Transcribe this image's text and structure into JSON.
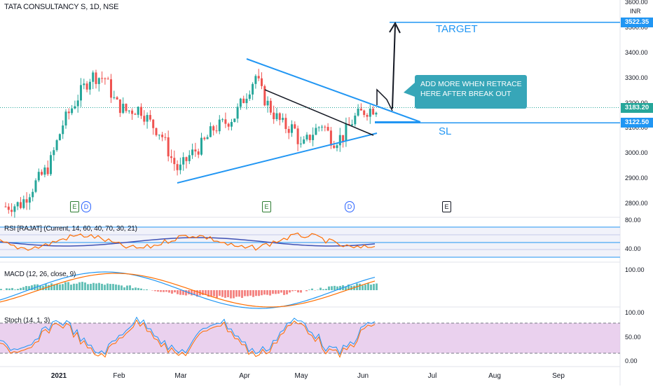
{
  "header": {
    "symbol_title": "TATA CONSULTANCY S, 1D, NSE"
  },
  "price_axis": {
    "currency": "INR",
    "ticks": [
      "3600.00",
      "3500.00",
      "3400.00",
      "3300.00",
      "3200.00",
      "3100.00",
      "3000.00",
      "2900.00",
      "2800.00"
    ],
    "tick_values": [
      3600,
      3500,
      3400,
      3300,
      3200,
      3100,
      3000,
      2900,
      2800
    ],
    "tags": [
      {
        "value": 3522.35,
        "label": "3522.35",
        "color": "#2196f3"
      },
      {
        "value": 3183.2,
        "label": "3183.20",
        "color": "#26a69a"
      },
      {
        "value": 3122.5,
        "label": "3122.50",
        "color": "#2196f3"
      }
    ]
  },
  "time_axis": {
    "labels": [
      "2021",
      "Feb",
      "Mar",
      "Apr",
      "May",
      "Jun",
      "Jul",
      "Aug",
      "Sep"
    ]
  },
  "annotations": {
    "target_label": "TARGET",
    "sl_label": "SL",
    "callout_line1": "ADD MORE WHEN RETRACE",
    "callout_line2": "HERE AFTER BREAK OUT"
  },
  "events": [
    {
      "type": "earnings",
      "glyph": "E"
    },
    {
      "type": "dividend",
      "glyph": "D"
    },
    {
      "type": "earnings",
      "glyph": "E"
    },
    {
      "type": "dividend",
      "glyph": "D"
    },
    {
      "type": "earnings-upcoming",
      "glyph": "E"
    }
  ],
  "rsi_pane": {
    "label": "RSI [RAJAT] (Current, 14, 60, 40, 70, 30, 21)",
    "ticks": [
      "80.00",
      "40.00"
    ]
  },
  "macd_pane": {
    "label": "MACD (12, 26, close, 9)",
    "ticks": [
      "100.00"
    ]
  },
  "stoch_pane": {
    "label": "Stoch (14, 1, 3)",
    "ticks": [
      "100.00",
      "50.00",
      "0.00"
    ]
  },
  "colors": {
    "up": "#26a69a",
    "down": "#ef5350",
    "trendline": "#2196f3",
    "rsi_line": "#ff6d00",
    "rsi_ma": "#3f51b5",
    "stoch_bg": "#e1bee7"
  }
}
